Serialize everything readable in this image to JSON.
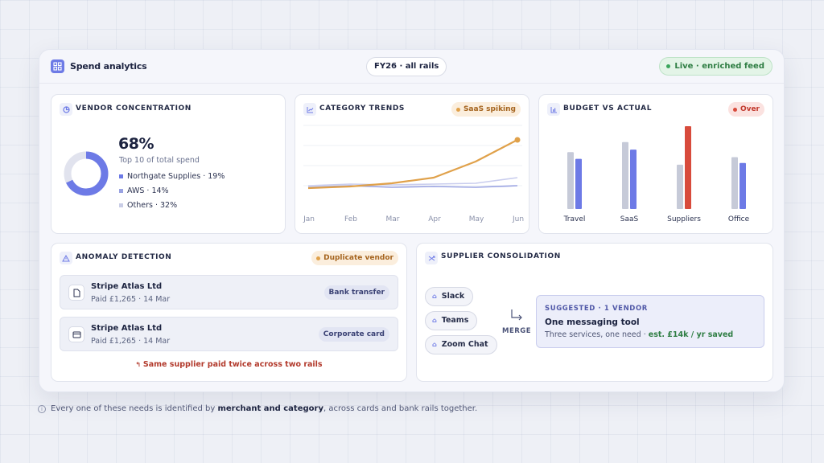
{
  "header": {
    "title": "Spend analytics",
    "period": "FY26 · all rails",
    "status": "Live · enriched feed"
  },
  "vendor_concentration": {
    "title": "VENDOR CONCENTRATION",
    "percent": "68%",
    "percent_value": 68,
    "subtitle": "Top 10 of total spend",
    "legend": [
      {
        "label": "Northgate Supplies · 19%",
        "color": "#6d7ae6"
      },
      {
        "label": "AWS · 14%",
        "color": "#9aa3e2"
      },
      {
        "label": "Others · 32%",
        "color": "#c9cde6"
      }
    ]
  },
  "category_trends": {
    "title": "CATEGORY TRENDS",
    "tag": "SaaS spiking"
  },
  "budget": {
    "title": "BUDGET VS ACTUAL",
    "tag": "Over"
  },
  "anomaly": {
    "title": "ANOMALY DETECTION",
    "tag": "Duplicate vendor",
    "items": [
      {
        "name": "Stripe Atlas Ltd",
        "detail": "Paid £1,265 · 14 Mar",
        "rail": "Bank transfer"
      },
      {
        "name": "Stripe Atlas Ltd",
        "detail": "Paid £1,265 · 14 Mar",
        "rail": "Corporate card"
      }
    ],
    "warning": "Same supplier paid twice across two rails"
  },
  "consolidation": {
    "title": "SUPPLIER CONSOLIDATION",
    "services": [
      "Slack",
      "Teams",
      "Zoom Chat"
    ],
    "merge_label": "MERGE",
    "suggest_kicker": "SUGGESTED · 1 VENDOR",
    "suggest_title": "One messaging tool",
    "suggest_desc": "Three services, one need · ",
    "suggest_saving": "est. £14k / yr saved"
  },
  "footnote": {
    "prefix": "Every one of these needs is identified by ",
    "bold": "merchant and category",
    "suffix": ", across cards and bank rails together."
  },
  "chart_data": [
    {
      "type": "line",
      "title": "CATEGORY TRENDS",
      "x": [
        "Jan",
        "Feb",
        "Mar",
        "Apr",
        "May",
        "Jun"
      ],
      "ylim": [
        0,
        100
      ],
      "grid": true,
      "series": [
        {
          "values": [
            22,
            24,
            28,
            35,
            55,
            82
          ],
          "color": "#e0a14a",
          "highlight": true
        },
        {
          "values": [
            25,
            27,
            26,
            27,
            28,
            35
          ],
          "color": "#c9cdee"
        },
        {
          "values": [
            23,
            25,
            23,
            24,
            23,
            25
          ],
          "color": "#9aa3e2"
        }
      ]
    },
    {
      "type": "bar",
      "title": "BUDGET VS ACTUAL",
      "categories": [
        "Travel",
        "SaaS",
        "Suppliers",
        "Office"
      ],
      "ylim": [
        0,
        100
      ],
      "series": [
        {
          "values": [
            68,
            80,
            53,
            62
          ],
          "color": "#c6cad8"
        },
        {
          "values": [
            60,
            71,
            99,
            55
          ],
          "color": "#6d7ae6",
          "over_color": "#d84b3c",
          "over_index": 2
        }
      ]
    }
  ]
}
